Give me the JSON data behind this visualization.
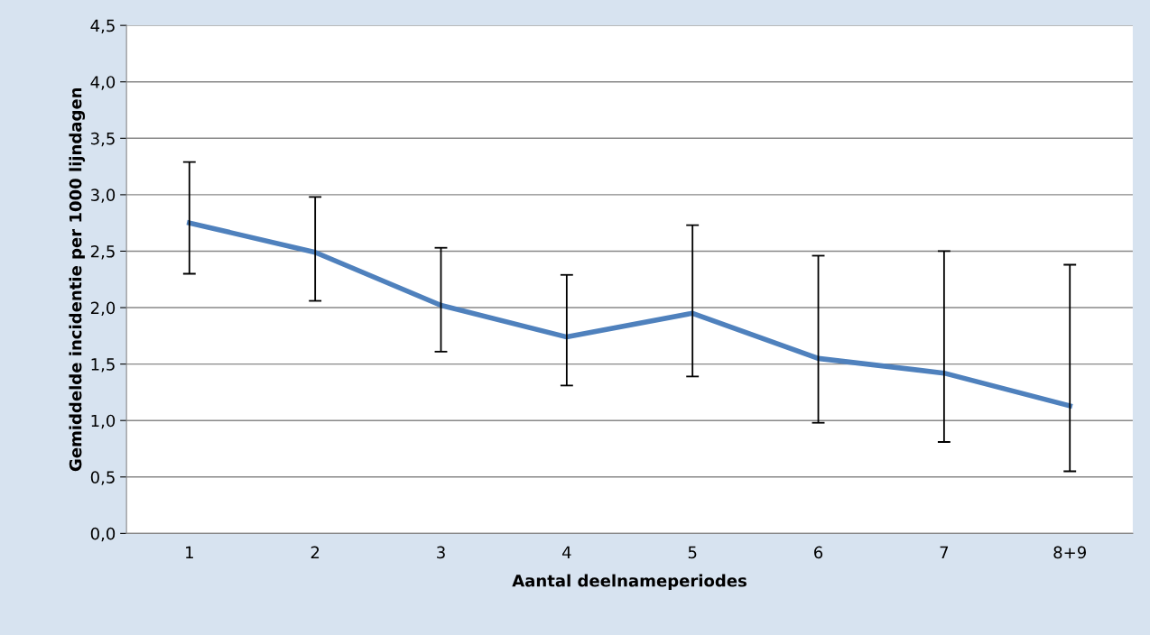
{
  "chart_data": {
    "type": "line",
    "xlabel": "Aantal deelnameperiodes",
    "ylabel": "Gemiddelde incidentie per 1000 lijndagen",
    "categories": [
      "1",
      "2",
      "3",
      "4",
      "5",
      "6",
      "7",
      "8+9"
    ],
    "series": [
      {
        "color": "#4f81bd",
        "values": [
          2.75,
          2.49,
          2.02,
          1.74,
          1.95,
          1.55,
          1.42,
          1.13
        ],
        "errors": [
          [
            2.3,
            3.29
          ],
          [
            2.06,
            2.98
          ],
          [
            1.61,
            2.53
          ],
          [
            1.31,
            2.29
          ],
          [
            1.39,
            2.73
          ],
          [
            0.98,
            2.46
          ],
          [
            0.81,
            2.5
          ],
          [
            0.55,
            2.38
          ]
        ]
      }
    ],
    "ylim": [
      0,
      4.5
    ],
    "yticks": [
      {
        "value": 0,
        "label": "0,0"
      },
      {
        "value": 0.5,
        "label": "0,5"
      },
      {
        "value": 1,
        "label": "1,0"
      },
      {
        "value": 1.5,
        "label": "1,5"
      },
      {
        "value": 2,
        "label": "2,0"
      },
      {
        "value": 2.5,
        "label": "2,5"
      },
      {
        "value": 3,
        "label": "3,0"
      },
      {
        "value": 3.5,
        "label": "3,5"
      },
      {
        "value": 4,
        "label": "4,0"
      },
      {
        "value": 4.5,
        "label": "4,5"
      }
    ],
    "grid": "y",
    "marker": "none",
    "line_style": "solid",
    "legend": false
  }
}
